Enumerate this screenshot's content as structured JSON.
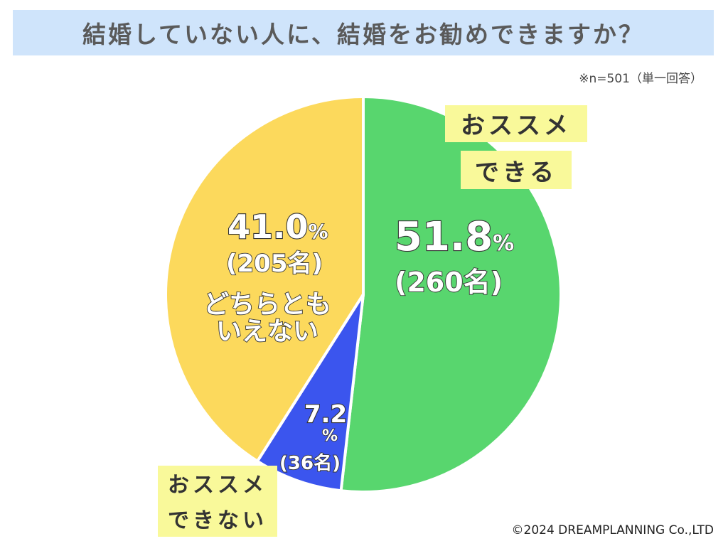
{
  "header": {
    "title": "結婚していない人に、結婚をお勧めできますか？"
  },
  "note": "※n=501（単一回答）",
  "copyright": "©2024 DREAMPLANNING Co.,LTD",
  "chart_data": {
    "type": "pie",
    "title": "結婚していない人に、結婚をお勧めできますか？",
    "n": 501,
    "slices": [
      {
        "label": "おススメできる",
        "label_lines": [
          "おススメ",
          "できる"
        ],
        "percent": 51.8,
        "count_text": "(260名)",
        "pct_text": "51.8",
        "color": "#58d66e"
      },
      {
        "label": "おススメできない",
        "label_lines": [
          "おススメ",
          "できない"
        ],
        "percent": 7.2,
        "count_text": "(36名)",
        "pct_text": "7.2",
        "color": "#3b55ee"
      },
      {
        "label": "どちらともいえない",
        "label_lines": [
          "どちらとも",
          "いえない"
        ],
        "percent": 41.0,
        "count_text": "(205名)",
        "pct_text": "41.0",
        "color": "#fcd95c"
      }
    ],
    "percent_sign": "%"
  }
}
